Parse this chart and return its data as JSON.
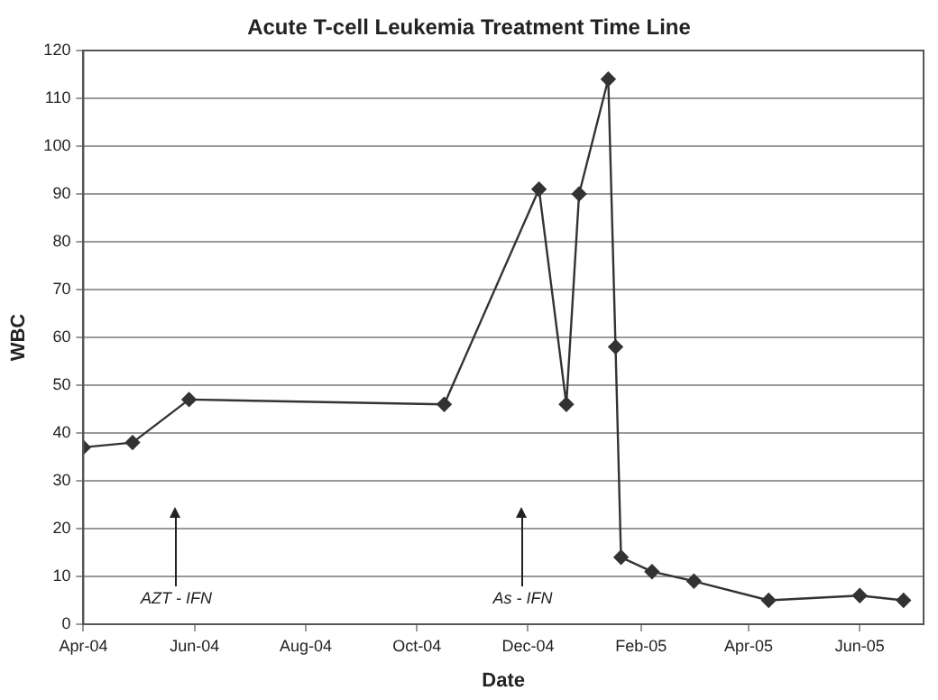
{
  "chart_data": {
    "type": "line",
    "title": "Acute T-cell Leukemia Treatment Time Line",
    "xlabel": "Date",
    "ylabel": "WBC",
    "x": [
      "2004-04-01",
      "2004-04-28",
      "2004-05-29",
      "2004-10-16",
      "2004-12-07",
      "2004-12-22",
      "2004-12-29",
      "2005-01-14",
      "2005-01-18",
      "2005-01-21",
      "2005-02-07",
      "2005-03-02",
      "2005-04-12",
      "2005-06-01",
      "2005-06-25"
    ],
    "series": [
      {
        "color": "#333333",
        "values": [
          37,
          38,
          47,
          46,
          91,
          46,
          90,
          114,
          58,
          14,
          11,
          9,
          5,
          6,
          5
        ]
      }
    ],
    "xlim": [
      "2004-04-01",
      "2005-07-06"
    ],
    "xticks": [
      {
        "value": "2004-04-01",
        "label": "Apr-04"
      },
      {
        "value": "2004-06-01",
        "label": "Jun-04"
      },
      {
        "value": "2004-08-01",
        "label": "Aug-04"
      },
      {
        "value": "2004-10-01",
        "label": "Oct-04"
      },
      {
        "value": "2004-12-01",
        "label": "Dec-04"
      },
      {
        "value": "2005-02-01",
        "label": "Feb-05"
      },
      {
        "value": "2005-04-01",
        "label": "Apr-05"
      },
      {
        "value": "2005-06-01",
        "label": "Jun-05"
      }
    ],
    "ylim": [
      0,
      120
    ],
    "yticks": [
      0,
      10,
      20,
      30,
      40,
      50,
      60,
      70,
      80,
      90,
      100,
      110,
      120
    ],
    "ref_lines": [
      {
        "axis": "x",
        "value": "2004-05-22",
        "label": "AZT - IFN"
      },
      {
        "axis": "x",
        "value": "2004-11-28",
        "label": "As - IFN"
      }
    ],
    "grid": "y",
    "legend": false,
    "marker": "diamond",
    "line_style": "solid"
  }
}
